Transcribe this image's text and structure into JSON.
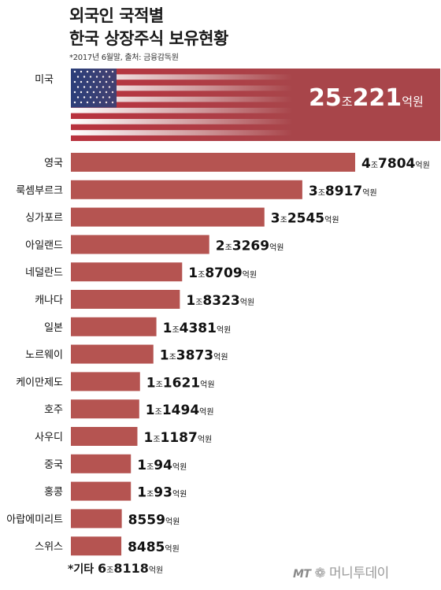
{
  "title_line1": "외국인 국적별",
  "title_line2": "한국 상장주식 보유현황",
  "source": "*2017년 6월말, 출처: 금융감독원",
  "other": {
    "prefix": "*기타",
    "big1": "6",
    "unit1": "조",
    "big2": "8118",
    "unit2": "억원"
  },
  "logo": {
    "mt": "MT",
    "name": "머니투데이"
  },
  "colors": {
    "bar": "#b55451",
    "usa_bar": "#a8454a",
    "text": "#1a1a1a"
  },
  "chart_data": {
    "type": "bar",
    "orientation": "horizontal",
    "unit": "억원",
    "categories": [
      "미국",
      "영국",
      "룩셈부르크",
      "싱가포르",
      "아일랜드",
      "네덜란드",
      "캐나다",
      "일본",
      "노르웨이",
      "케이만제도",
      "호주",
      "사우디",
      "중국",
      "홍콩",
      "아랍에미리트",
      "스위스"
    ],
    "values": [
      250221,
      47804,
      38917,
      32545,
      23269,
      18709,
      18323,
      14381,
      13873,
      11621,
      11494,
      11187,
      10094,
      10093,
      8559,
      8485
    ],
    "labels": [
      {
        "jo": "25",
        "eok": "221"
      },
      {
        "jo": "4",
        "eok": "7804"
      },
      {
        "jo": "3",
        "eok": "8917"
      },
      {
        "jo": "3",
        "eok": "2545"
      },
      {
        "jo": "2",
        "eok": "3269"
      },
      {
        "jo": "1",
        "eok": "8709"
      },
      {
        "jo": "1",
        "eok": "8323"
      },
      {
        "jo": "1",
        "eok": "4381"
      },
      {
        "jo": "1",
        "eok": "3873"
      },
      {
        "jo": "1",
        "eok": "1621"
      },
      {
        "jo": "1",
        "eok": "1494"
      },
      {
        "jo": "1",
        "eok": "1187"
      },
      {
        "jo": "1",
        "eok": "94"
      },
      {
        "jo": "1",
        "eok": "93"
      },
      {
        "jo": "",
        "eok": "8559"
      },
      {
        "jo": "",
        "eok": "8485"
      }
    ],
    "jo_unit": "조",
    "eok_unit": "억원"
  }
}
